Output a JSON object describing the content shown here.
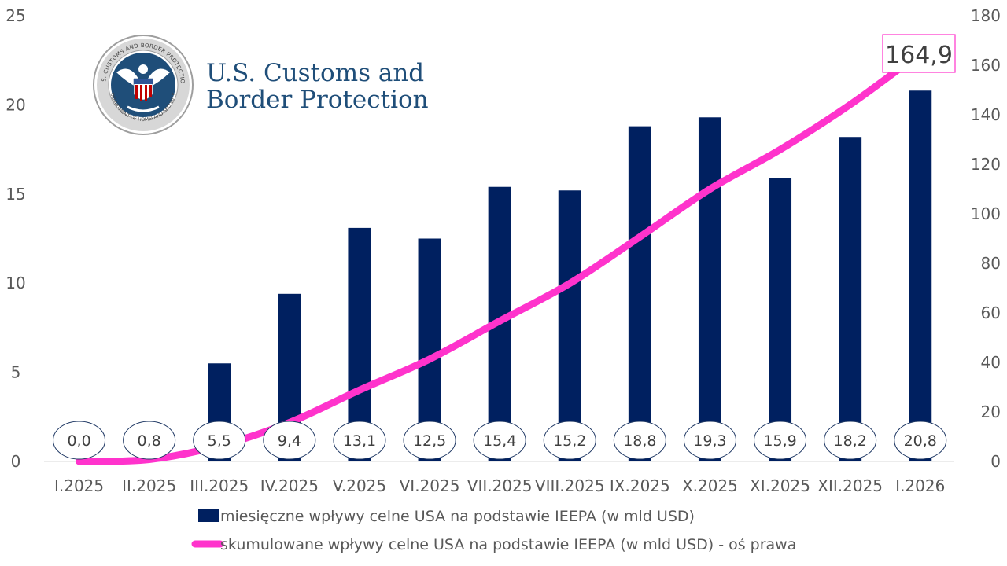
{
  "chart_data": {
    "type": "bar+line",
    "categories": [
      "I.2025",
      "II.2025",
      "III.2025",
      "IV.2025",
      "V.2025",
      "VI.2025",
      "VII.2025",
      "VIII.2025",
      "IX.2025",
      "X.2025",
      "XI.2025",
      "XII.2025",
      "I.2026"
    ],
    "series": [
      {
        "name": "miesięczne wpływy celne USA na podstawie IEEPA (w mld USD)",
        "type": "bar",
        "axis": "left",
        "color": "#002060",
        "values": [
          0.0,
          0.8,
          5.5,
          9.4,
          13.1,
          12.5,
          15.4,
          15.2,
          18.8,
          19.3,
          15.9,
          18.2,
          20.8
        ],
        "data_labels": [
          "0,0",
          "0,8",
          "5,5",
          "9,4",
          "13,1",
          "12,5",
          "15,4",
          "15,2",
          "18,8",
          "19,3",
          "15,9",
          "18,2",
          "20,8"
        ]
      },
      {
        "name": "skumulowane wpływy celne USA na podstawie IEEPA (w mld USD) - oś prawa",
        "type": "line",
        "axis": "right",
        "color": "#ff33cc",
        "values": [
          0.0,
          0.8,
          6.3,
          15.7,
          28.8,
          41.3,
          56.7,
          71.9,
          90.7,
          110.0,
          125.9,
          144.1,
          164.9
        ],
        "last_label": "164,9"
      }
    ],
    "y_left": {
      "min": 0,
      "max": 25,
      "ticks": [
        "0",
        "5",
        "10",
        "15",
        "20",
        "25"
      ]
    },
    "y_right": {
      "min": 0,
      "max": 180,
      "ticks": [
        "0",
        "20",
        "40",
        "60",
        "80",
        "100",
        "120",
        "140",
        "160",
        "180"
      ]
    },
    "legend_position": "bottom"
  },
  "logo": {
    "line1": "U.S. Customs and",
    "line2": "Border Protection",
    "seal_outer_text": "U.S. CUSTOMS AND BORDER PROTECTION",
    "seal_inner_text": "DEPARTMENT OF HOMELAND SECURITY"
  }
}
